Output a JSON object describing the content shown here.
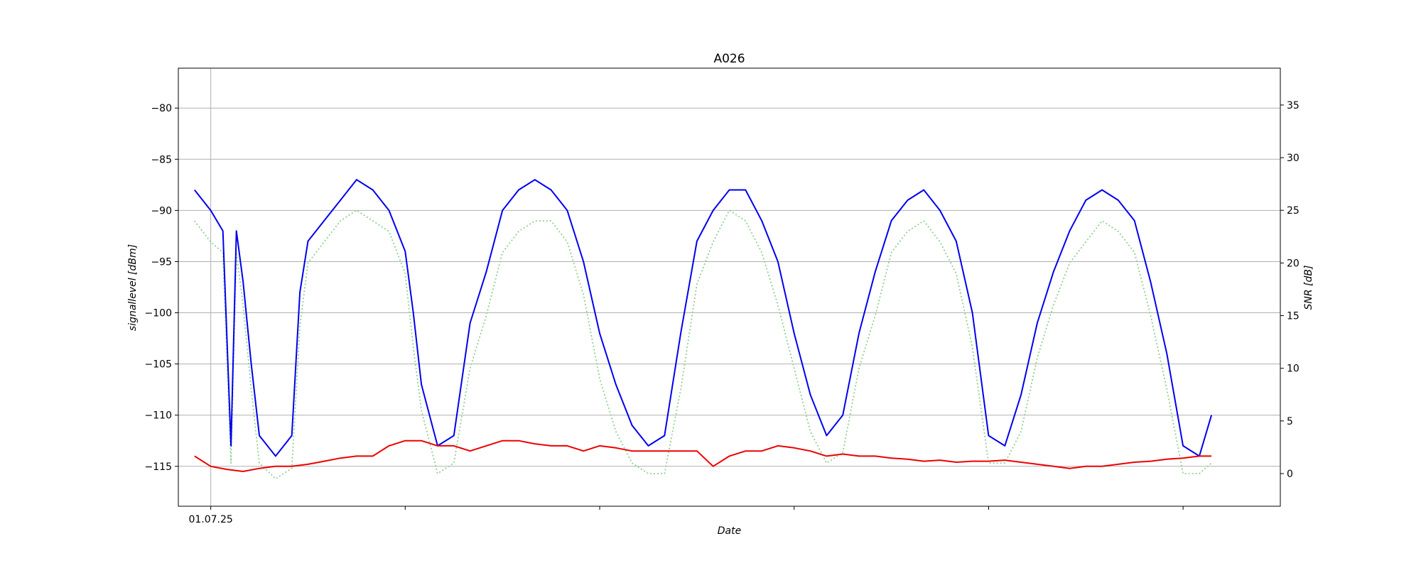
{
  "chart_data": {
    "type": "line",
    "title": "A026",
    "xlabel": "Date",
    "ylabel": "signallevel [dBm]",
    "y2label": "SNR [dB]",
    "x_tick_labels": [
      "01.07.25"
    ],
    "x_range": [
      "2025-06-30T20:00",
      "2025-07-06T12:00"
    ],
    "ylim": [
      -118.9,
      -76.1
    ],
    "y2lim": [
      -3.1,
      38.5
    ],
    "y_ticks": [
      -80,
      -85,
      -90,
      -95,
      -100,
      -105,
      -110,
      -115
    ],
    "y2_ticks": [
      35,
      30,
      25,
      20,
      15,
      10,
      5,
      0
    ],
    "grid": true,
    "colors": {
      "signal": "#0000ee",
      "noise": "#ee0000",
      "snr": "#90d090"
    },
    "series": [
      {
        "name": "",
        "axis": "left",
        "style": "solid",
        "color": "#0000ee",
        "x": [
          "2025-06-30T22:00",
          "2025-07-01T00:00",
          "2025-07-01T01:30",
          "2025-07-01T02:30",
          "2025-07-01T03:10",
          "2025-07-01T04:00",
          "2025-07-01T05:00",
          "2025-07-01T06:00",
          "2025-07-01T08:00",
          "2025-07-01T10:00",
          "2025-07-01T11:00",
          "2025-07-01T12:00",
          "2025-07-01T14:00",
          "2025-07-01T16:00",
          "2025-07-01T18:00",
          "2025-07-01T20:00",
          "2025-07-01T22:00",
          "2025-07-02T00:00",
          "2025-07-02T01:00",
          "2025-07-02T02:00",
          "2025-07-02T04:00",
          "2025-07-02T06:00",
          "2025-07-02T08:00",
          "2025-07-02T10:00",
          "2025-07-02T12:00",
          "2025-07-02T14:00",
          "2025-07-02T16:00",
          "2025-07-02T18:00",
          "2025-07-02T20:00",
          "2025-07-02T22:00",
          "2025-07-03T00:00",
          "2025-07-03T02:00",
          "2025-07-03T04:00",
          "2025-07-03T06:00",
          "2025-07-03T08:00",
          "2025-07-03T10:00",
          "2025-07-03T12:00",
          "2025-07-03T14:00",
          "2025-07-03T16:00",
          "2025-07-03T18:00",
          "2025-07-03T20:00",
          "2025-07-03T22:00",
          "2025-07-04T00:00",
          "2025-07-04T02:00",
          "2025-07-04T04:00",
          "2025-07-04T06:00",
          "2025-07-04T08:00",
          "2025-07-04T10:00",
          "2025-07-04T12:00",
          "2025-07-04T14:00",
          "2025-07-04T16:00",
          "2025-07-04T18:00",
          "2025-07-04T20:00",
          "2025-07-04T22:00",
          "2025-07-05T00:00",
          "2025-07-05T02:00",
          "2025-07-05T04:00",
          "2025-07-05T06:00",
          "2025-07-05T08:00",
          "2025-07-05T10:00",
          "2025-07-05T12:00",
          "2025-07-05T14:00",
          "2025-07-05T16:00",
          "2025-07-05T18:00",
          "2025-07-05T20:00",
          "2025-07-05T22:00",
          "2025-07-06T00:00",
          "2025-07-06T02:00",
          "2025-07-06T03:30"
        ],
        "values": [
          -88,
          -90,
          -92,
          -113,
          -92,
          -97,
          -105,
          -112,
          -114,
          -112,
          -98,
          -93,
          -91,
          -89,
          -87,
          -88,
          -90,
          -94,
          -100,
          -107,
          -113,
          -112,
          -101,
          -96,
          -90,
          -88,
          -87,
          -88,
          -90,
          -95,
          -102,
          -107,
          -111,
          -113,
          -112,
          -102,
          -93,
          -90,
          -88,
          -88,
          -91,
          -95,
          -102,
          -108,
          -112,
          -110,
          -102,
          -96,
          -91,
          -89,
          -88,
          -90,
          -93,
          -100,
          -112,
          -113,
          -108,
          -101,
          -96,
          -92,
          -89,
          -88,
          -89,
          -91,
          -97,
          -104,
          -113,
          -114,
          -110
        ]
      },
      {
        "name": "",
        "axis": "left",
        "style": "solid",
        "color": "#ee0000",
        "x": [
          "2025-06-30T22:00",
          "2025-07-01T00:00",
          "2025-07-01T02:00",
          "2025-07-01T04:00",
          "2025-07-01T06:00",
          "2025-07-01T08:00",
          "2025-07-01T10:00",
          "2025-07-01T12:00",
          "2025-07-01T14:00",
          "2025-07-01T16:00",
          "2025-07-01T18:00",
          "2025-07-01T20:00",
          "2025-07-01T22:00",
          "2025-07-02T00:00",
          "2025-07-02T02:00",
          "2025-07-02T04:00",
          "2025-07-02T06:00",
          "2025-07-02T08:00",
          "2025-07-02T10:00",
          "2025-07-02T12:00",
          "2025-07-02T14:00",
          "2025-07-02T16:00",
          "2025-07-02T18:00",
          "2025-07-02T20:00",
          "2025-07-02T22:00",
          "2025-07-03T00:00",
          "2025-07-03T02:00",
          "2025-07-03T04:00",
          "2025-07-03T06:00",
          "2025-07-03T08:00",
          "2025-07-03T10:00",
          "2025-07-03T12:00",
          "2025-07-03T14:00",
          "2025-07-03T16:00",
          "2025-07-03T18:00",
          "2025-07-03T20:00",
          "2025-07-03T22:00",
          "2025-07-04T00:00",
          "2025-07-04T02:00",
          "2025-07-04T04:00",
          "2025-07-04T06:00",
          "2025-07-04T08:00",
          "2025-07-04T10:00",
          "2025-07-04T12:00",
          "2025-07-04T14:00",
          "2025-07-04T16:00",
          "2025-07-04T18:00",
          "2025-07-04T20:00",
          "2025-07-04T22:00",
          "2025-07-05T00:00",
          "2025-07-05T02:00",
          "2025-07-05T04:00",
          "2025-07-05T06:00",
          "2025-07-05T08:00",
          "2025-07-05T10:00",
          "2025-07-05T12:00",
          "2025-07-05T14:00",
          "2025-07-05T16:00",
          "2025-07-05T18:00",
          "2025-07-05T20:00",
          "2025-07-05T22:00",
          "2025-07-06T00:00",
          "2025-07-06T02:00",
          "2025-07-06T03:30"
        ],
        "values": [
          -114,
          -115,
          -115.3,
          -115.5,
          -115.2,
          -115,
          -115,
          -114.8,
          -114.5,
          -114.2,
          -114,
          -114,
          -113,
          -112.5,
          -112.5,
          -113,
          -113,
          -113.5,
          -113,
          -112.5,
          -112.5,
          -112.8,
          -113,
          -113,
          -113.5,
          -113,
          -113.2,
          -113.5,
          -113.5,
          -113.5,
          -113.5,
          -113.5,
          -115,
          -114,
          -113.5,
          -113.5,
          -113,
          -113.2,
          -113.5,
          -114,
          -113.8,
          -114,
          -114,
          -114.2,
          -114.3,
          -114.5,
          -114.4,
          -114.6,
          -114.5,
          -114.5,
          -114.4,
          -114.6,
          -114.8,
          -115,
          -115.2,
          -115,
          -115,
          -114.8,
          -114.6,
          -114.5,
          -114.3,
          -114.2,
          -114,
          -114
        ]
      },
      {
        "name": "",
        "axis": "right",
        "style": "dotted",
        "color": "#90d090",
        "x": [
          "2025-06-30T22:00",
          "2025-07-01T00:00",
          "2025-07-01T01:30",
          "2025-07-01T02:30",
          "2025-07-01T03:10",
          "2025-07-01T04:00",
          "2025-07-01T05:00",
          "2025-07-01T06:00",
          "2025-07-01T08:00",
          "2025-07-01T10:00",
          "2025-07-01T11:00",
          "2025-07-01T12:00",
          "2025-07-01T14:00",
          "2025-07-01T16:00",
          "2025-07-01T18:00",
          "2025-07-01T20:00",
          "2025-07-01T22:00",
          "2025-07-02T00:00",
          "2025-07-02T01:00",
          "2025-07-02T02:00",
          "2025-07-02T04:00",
          "2025-07-02T06:00",
          "2025-07-02T08:00",
          "2025-07-02T10:00",
          "2025-07-02T12:00",
          "2025-07-02T14:00",
          "2025-07-02T16:00",
          "2025-07-02T18:00",
          "2025-07-02T20:00",
          "2025-07-02T22:00",
          "2025-07-03T00:00",
          "2025-07-03T02:00",
          "2025-07-03T04:00",
          "2025-07-03T06:00",
          "2025-07-03T08:00",
          "2025-07-03T10:00",
          "2025-07-03T12:00",
          "2025-07-03T14:00",
          "2025-07-03T16:00",
          "2025-07-03T18:00",
          "2025-07-03T20:00",
          "2025-07-03T22:00",
          "2025-07-04T00:00",
          "2025-07-04T02:00",
          "2025-07-04T04:00",
          "2025-07-04T06:00",
          "2025-07-04T08:00",
          "2025-07-04T10:00",
          "2025-07-04T12:00",
          "2025-07-04T14:00",
          "2025-07-04T16:00",
          "2025-07-04T18:00",
          "2025-07-04T20:00",
          "2025-07-04T22:00",
          "2025-07-05T00:00",
          "2025-07-05T02:00",
          "2025-07-05T04:00",
          "2025-07-05T06:00",
          "2025-07-05T08:00",
          "2025-07-05T10:00",
          "2025-07-05T12:00",
          "2025-07-05T14:00",
          "2025-07-05T16:00",
          "2025-07-05T18:00",
          "2025-07-05T20:00",
          "2025-07-05T22:00",
          "2025-07-06T00:00",
          "2025-07-06T02:00",
          "2025-07-06T03:30"
        ],
        "values": [
          24,
          22,
          21,
          1,
          21,
          16,
          8,
          1,
          -0.5,
          0.5,
          14,
          20,
          22,
          24,
          25,
          24,
          23,
          19,
          12,
          6,
          0,
          1,
          10,
          15,
          21,
          23,
          24,
          24,
          22,
          17,
          9,
          4,
          1,
          0,
          0,
          8,
          18,
          22,
          25,
          24,
          21,
          16,
          10,
          4,
          1,
          2,
          10,
          15,
          21,
          23,
          24,
          22,
          19,
          12,
          1,
          1,
          4,
          11,
          16,
          20,
          22,
          24,
          23,
          21,
          15,
          8,
          0,
          0,
          1
        ]
      }
    ]
  }
}
